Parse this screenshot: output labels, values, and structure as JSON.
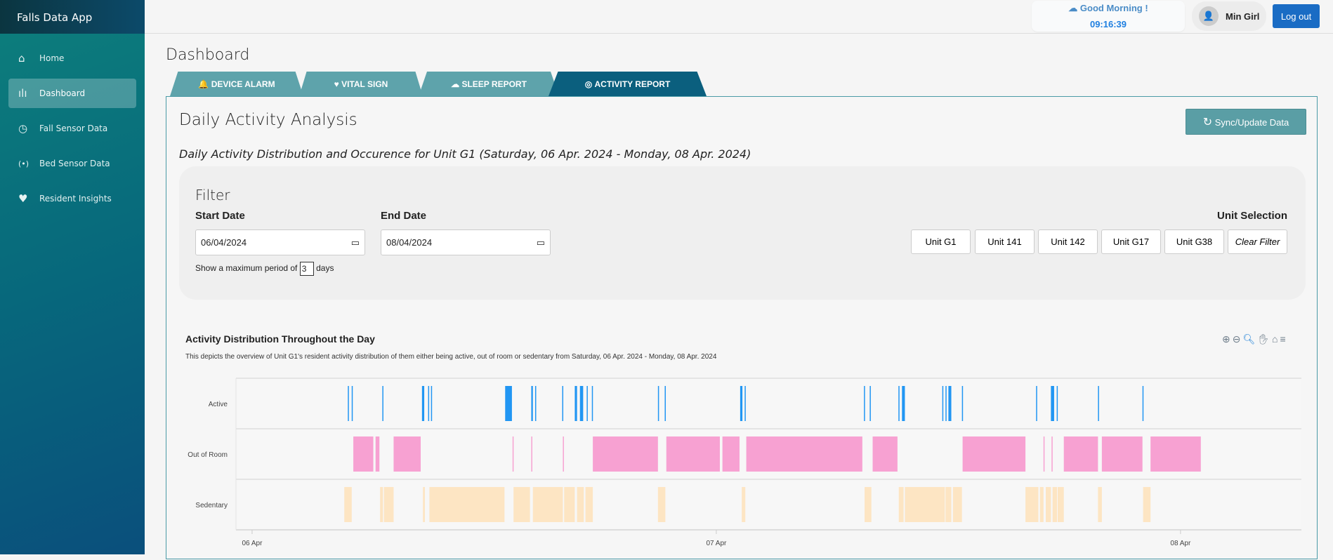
{
  "app": {
    "title": "Falls Data App"
  },
  "sidebar": {
    "items": [
      {
        "label": "Home",
        "icon": "home-icon"
      },
      {
        "label": "Dashboard",
        "icon": "waveform-icon",
        "active": true
      },
      {
        "label": "Fall Sensor Data",
        "icon": "clock-icon"
      },
      {
        "label": "Bed Sensor Data",
        "icon": "broadcast-icon"
      },
      {
        "label": "Resident Insights",
        "icon": "heart-icon"
      }
    ]
  },
  "header": {
    "greeting": "Good Morning !",
    "time": "09:16:39",
    "user": "Min Girl",
    "logout": "Log out"
  },
  "page": {
    "title": "Dashboard"
  },
  "tabs": [
    {
      "label": "DEVICE ALARM",
      "icon": "🔔"
    },
    {
      "label": "VITAL SIGN",
      "icon": "♥"
    },
    {
      "label": "SLEEP REPORT",
      "icon": "☁"
    },
    {
      "label": "ACTIVITY REPORT",
      "icon": "◎",
      "active": true
    }
  ],
  "report": {
    "title": "Daily Activity Analysis",
    "sync_label": "Sync/Update Data",
    "subtitle_prefix": "Daily Activity Distribution and Occurence for ",
    "subtitle_unit": "Unit G1",
    "subtitle_range": " (Saturday, 06 Apr. 2024 - Monday, 08 Apr. 2024)"
  },
  "filter": {
    "title": "Filter",
    "start_label": "Start Date",
    "start_value": "06/04/2024",
    "end_label": "End Date",
    "end_value": "08/04/2024",
    "max_prefix": "Show a maximum period of",
    "max_value": "3",
    "max_suffix": "days",
    "unit_label": "Unit Selection",
    "units": [
      "Unit G1",
      "Unit 141",
      "Unit 142",
      "Unit G17",
      "Unit G38"
    ],
    "clear": "Clear Filter"
  },
  "chart_data": {
    "type": "timeline",
    "title": "Activity Distribution Throughout the Day",
    "subtitle": "This depicts the overview of Unit G1's resident activity distribution of them either being active, out of room or sedentary from Saturday, 06 Apr. 2024 - Monday, 08 Apr. 2024",
    "categories": [
      "Active",
      "Out of Room",
      "Sedentary"
    ],
    "colors": {
      "Active": "#2196f3",
      "Out of Room": "#f7a1d2",
      "Sedentary": "#fde5c3"
    },
    "x_ticks": [
      "06 Apr",
      "07 Apr",
      "08 Apr"
    ],
    "x_range": [
      "2024-04-05 23:10",
      "2024-04-08 06:15"
    ],
    "series": {
      "Active": [
        [
          "2024-04-06 04:57",
          "2024-04-06 05:00"
        ],
        [
          "2024-04-06 05:09",
          "2024-04-06 05:11"
        ],
        [
          "2024-04-06 06:44",
          "2024-04-06 06:46"
        ],
        [
          "2024-04-06 08:47",
          "2024-04-06 08:54"
        ],
        [
          "2024-04-06 09:06",
          "2024-04-06 09:08"
        ],
        [
          "2024-04-06 09:15",
          "2024-04-06 09:17"
        ],
        [
          "2024-04-06 13:05",
          "2024-04-06 13:26"
        ],
        [
          "2024-04-06 14:26",
          "2024-04-06 14:31"
        ],
        [
          "2024-04-06 14:38",
          "2024-04-06 14:40"
        ],
        [
          "2024-04-06 16:02",
          "2024-04-06 16:04"
        ],
        [
          "2024-04-06 16:41",
          "2024-04-06 16:48"
        ],
        [
          "2024-04-06 16:57",
          "2024-04-06 17:07"
        ],
        [
          "2024-04-06 17:18",
          "2024-04-06 17:20"
        ],
        [
          "2024-04-06 17:34",
          "2024-04-06 17:36"
        ],
        [
          "2024-04-06 20:59",
          "2024-04-06 21:01"
        ],
        [
          "2024-04-06 21:20",
          "2024-04-06 21:22"
        ],
        [
          "2024-04-07 01:14",
          "2024-04-07 01:21"
        ],
        [
          "2024-04-07 01:28",
          "2024-04-07 01:30"
        ],
        [
          "2024-04-07 07:38",
          "2024-04-07 07:40"
        ],
        [
          "2024-04-07 07:56",
          "2024-04-07 07:58"
        ],
        [
          "2024-04-07 09:25",
          "2024-04-07 09:27"
        ],
        [
          "2024-04-07 09:36",
          "2024-04-07 09:45"
        ],
        [
          "2024-04-07 11:41",
          "2024-04-07 11:43"
        ],
        [
          "2024-04-07 11:51",
          "2024-04-07 11:53"
        ],
        [
          "2024-04-07 12:00",
          "2024-04-07 12:09"
        ],
        [
          "2024-04-07 12:42",
          "2024-04-07 12:44"
        ],
        [
          "2024-04-07 16:32",
          "2024-04-07 16:34"
        ],
        [
          "2024-04-07 17:18",
          "2024-04-07 17:28"
        ],
        [
          "2024-04-07 17:36",
          "2024-04-07 17:38"
        ],
        [
          "2024-04-07 19:44",
          "2024-04-07 19:46"
        ],
        [
          "2024-04-07 22:02",
          "2024-04-07 22:04"
        ]
      ],
      "Out of Room": [
        [
          "2024-04-06 05:14",
          "2024-04-06 06:16"
        ],
        [
          "2024-04-06 06:23",
          "2024-04-06 06:35"
        ],
        [
          "2024-04-06 07:19",
          "2024-04-06 08:43"
        ],
        [
          "2024-04-06 13:28",
          "2024-04-06 13:30"
        ],
        [
          "2024-04-06 14:26",
          "2024-04-06 14:28"
        ],
        [
          "2024-04-06 16:04",
          "2024-04-06 16:06"
        ],
        [
          "2024-04-06 17:37",
          "2024-04-06 20:59"
        ],
        [
          "2024-04-06 21:25",
          "2024-04-07 00:11"
        ],
        [
          "2024-04-07 00:19",
          "2024-04-07 01:12"
        ],
        [
          "2024-04-07 01:33",
          "2024-04-07 07:33"
        ],
        [
          "2024-04-07 08:05",
          "2024-04-07 09:22"
        ],
        [
          "2024-04-07 12:44",
          "2024-04-07 15:59"
        ],
        [
          "2024-04-07 16:55",
          "2024-04-07 16:57"
        ],
        [
          "2024-04-07 17:20",
          "2024-04-07 17:22"
        ],
        [
          "2024-04-07 17:58",
          "2024-04-07 19:44"
        ],
        [
          "2024-04-07 19:56",
          "2024-04-07 22:02"
        ],
        [
          "2024-04-07 22:27",
          "2024-04-08 01:03"
        ]
      ],
      "Sedentary": [
        [
          "2024-04-06 04:46",
          "2024-04-06 05:09"
        ],
        [
          "2024-04-06 06:37",
          "2024-04-06 06:46"
        ],
        [
          "2024-04-06 06:49",
          "2024-04-06 07:19"
        ],
        [
          "2024-04-06 08:50",
          "2024-04-06 08:56"
        ],
        [
          "2024-04-06 09:10",
          "2024-04-06 13:03"
        ],
        [
          "2024-04-06 13:31",
          "2024-04-06 14:22"
        ],
        [
          "2024-04-06 14:31",
          "2024-04-06 16:04"
        ],
        [
          "2024-04-06 16:08",
          "2024-04-06 16:41"
        ],
        [
          "2024-04-06 16:48",
          "2024-04-06 17:09"
        ],
        [
          "2024-04-06 17:14",
          "2024-04-06 17:37"
        ],
        [
          "2024-04-06 20:59",
          "2024-04-06 21:22"
        ],
        [
          "2024-04-07 01:19",
          "2024-04-07 01:30"
        ],
        [
          "2024-04-07 07:40",
          "2024-04-07 08:01"
        ],
        [
          "2024-04-07 09:26",
          "2024-04-07 09:41"
        ],
        [
          "2024-04-07 09:45",
          "2024-04-07 11:49"
        ],
        [
          "2024-04-07 11:51",
          "2024-04-07 12:09"
        ],
        [
          "2024-04-07 12:14",
          "2024-04-07 12:42"
        ],
        [
          "2024-04-07 15:59",
          "2024-04-07 16:39"
        ],
        [
          "2024-04-07 16:44",
          "2024-04-07 16:55"
        ],
        [
          "2024-04-07 17:02",
          "2024-04-07 17:18"
        ],
        [
          "2024-04-07 17:23",
          "2024-04-07 17:37"
        ],
        [
          "2024-04-07 17:39",
          "2024-04-07 17:58"
        ],
        [
          "2024-04-07 19:44",
          "2024-04-07 19:56"
        ],
        [
          "2024-04-07 22:04",
          "2024-04-07 22:27"
        ]
      ]
    }
  }
}
